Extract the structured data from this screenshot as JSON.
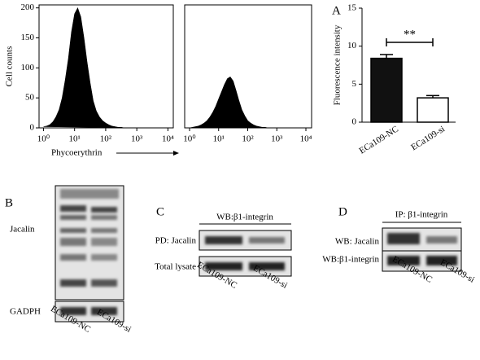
{
  "panel_labels": [
    "A",
    "B",
    "C",
    "D"
  ],
  "chart_data": [
    {
      "type": "area",
      "ylabel": "Cell counts",
      "xlabel": "Phycoerythrin",
      "xscale": "log",
      "color": "#000000",
      "x": [
        1,
        1.26,
        1.58,
        2,
        2.51,
        3.16,
        3.98,
        5.01,
        6.31,
        7.94,
        10,
        12.6,
        15.8,
        20,
        25.1,
        31.6,
        39.8,
        50.1,
        63.1,
        79.4,
        100,
        126,
        158,
        200,
        251,
        316,
        398,
        501,
        631,
        794,
        1000
      ],
      "values": [
        2,
        3,
        5,
        10,
        18,
        30,
        50,
        80,
        115,
        160,
        190,
        200,
        185,
        150,
        110,
        75,
        45,
        28,
        18,
        12,
        8,
        5,
        3,
        2,
        1,
        1,
        0,
        0,
        0,
        0,
        0
      ],
      "xlim": [
        0.72,
        14900
      ],
      "ylim": [
        0,
        205
      ],
      "yticks": [
        0,
        50,
        100,
        150,
        200
      ],
      "xticks": [
        {
          "value": 1,
          "label": "10⁰"
        },
        {
          "value": 10,
          "label": "10¹"
        },
        {
          "value": 100,
          "label": "10²"
        },
        {
          "value": 1000,
          "label": "10³"
        },
        {
          "value": 10000,
          "label": "10⁴"
        }
      ]
    },
    {
      "type": "area",
      "xscale": "log",
      "color": "#000000",
      "x": [
        1,
        1.26,
        1.58,
        2,
        2.51,
        3.16,
        3.98,
        5.01,
        6.31,
        7.94,
        10,
        12.6,
        15.8,
        20,
        25.1,
        31.6,
        39.8,
        50.1,
        63.1,
        79.4,
        100,
        126,
        158,
        200,
        251,
        316,
        398,
        501,
        631,
        794,
        1000
      ],
      "values": [
        0,
        1,
        2,
        3,
        5,
        8,
        12,
        18,
        26,
        36,
        48,
        60,
        72,
        82,
        85,
        78,
        62,
        45,
        30,
        20,
        12,
        8,
        5,
        3,
        2,
        1,
        1,
        0,
        0,
        0,
        0
      ],
      "xlim": [
        0.68,
        15700
      ],
      "ylim": [
        0,
        205
      ],
      "xticks": [
        {
          "value": 1,
          "label": "10⁰"
        },
        {
          "value": 10,
          "label": "10¹"
        },
        {
          "value": 100,
          "label": "10²"
        },
        {
          "value": 1000,
          "label": "10³"
        },
        {
          "value": 10000,
          "label": "10⁴"
        }
      ]
    },
    {
      "type": "bar",
      "ylabel": "Fluorescence intensity",
      "categories": [
        "ECa109-NC",
        "ECa109-si"
      ],
      "values": [
        8.4,
        3.2
      ],
      "errors": [
        0.5,
        0.3
      ],
      "colors": [
        "#111111",
        "#ffffff"
      ],
      "ylim": [
        0,
        15
      ],
      "yticks": [
        0,
        5,
        10,
        15
      ],
      "annotation": "**"
    }
  ],
  "blot_b": {
    "rows": [
      "Jacalin",
      "GADPH"
    ],
    "lanes": [
      "ECa109-NC",
      "ECa109-si"
    ]
  },
  "blot_c": {
    "header": "WB:β1-integrin",
    "rows": [
      "PD: Jacalin",
      "Total lysate"
    ],
    "lanes": [
      "ECa109-NC",
      "ECa109-si"
    ]
  },
  "blot_d": {
    "header": "IP: β1-integrin",
    "rows": [
      "WB: Jacalin",
      "WB:β1-integrin"
    ],
    "lanes": [
      "ECa109-NC",
      "ECa109-si"
    ]
  }
}
